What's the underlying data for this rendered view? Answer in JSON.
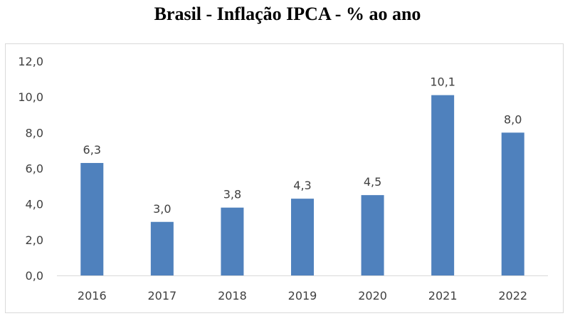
{
  "chart_data": {
    "type": "bar",
    "title": "Brasil - Inflação IPCA - % ao ano",
    "categories": [
      "2016",
      "2017",
      "2018",
      "2019",
      "2020",
      "2021",
      "2022"
    ],
    "values": [
      6.3,
      3.0,
      3.8,
      4.3,
      4.5,
      10.1,
      8.0
    ],
    "data_labels": [
      "6,3",
      "3,0",
      "3,8",
      "4,3",
      "4,5",
      "10,1",
      "8,0"
    ],
    "yticks": [
      0,
      2,
      4,
      6,
      8,
      10,
      12
    ],
    "ytick_labels": [
      "0,0",
      "2,0",
      "4,0",
      "6,0",
      "8,0",
      "10,0",
      "12,0"
    ],
    "ylim": [
      0,
      12
    ],
    "xlabel": "",
    "ylabel": "",
    "grid": false,
    "legend": "none",
    "bar_color": "#4f81bd",
    "axis_color": "#d9d9d9",
    "text_color": "#404040"
  }
}
